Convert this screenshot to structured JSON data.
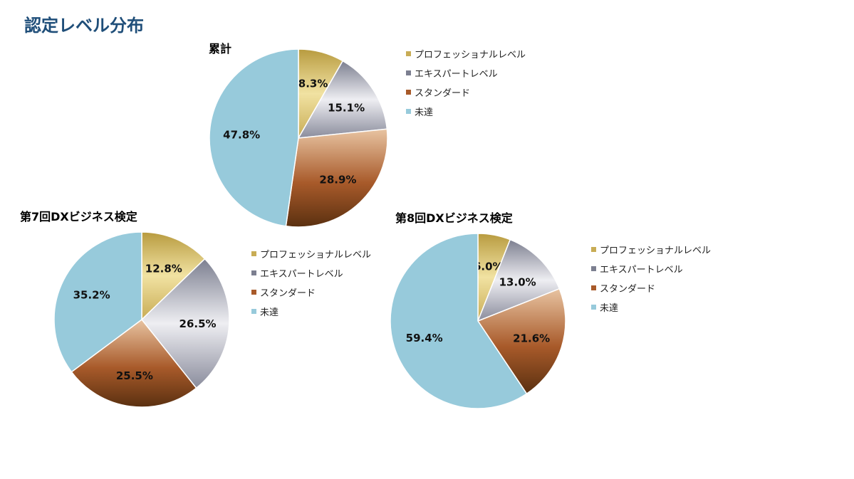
{
  "page": {
    "title": "認定レベル分布"
  },
  "legend_labels": [
    "プロフェッショナルレベル",
    "エキスパートレベル",
    "スタンダード",
    "未達"
  ],
  "colors": {
    "professional": [
      "#b89b3f",
      "#f1e2a2",
      "#c8ac55"
    ],
    "expert": [
      "#7c7f90",
      "#eeeef2",
      "#8a8c9c"
    ],
    "standard": [
      "#e8c4a2",
      "#a85a2a",
      "#5a3010"
    ],
    "unachieved": "#97cadb",
    "title_color": "#1f4e79"
  },
  "chart_data": [
    {
      "type": "pie",
      "title": "累計",
      "labels": [
        "プロフェッショナルレベル",
        "エキスパートレベル",
        "スタンダード",
        "未達"
      ],
      "values": [
        8.3,
        15.1,
        28.9,
        47.8
      ],
      "value_labels": [
        "8.3%",
        "15.1%",
        "28.9%",
        "47.8%"
      ],
      "legend": "right"
    },
    {
      "type": "pie",
      "title": "第7回DXビジネス検定",
      "labels": [
        "プロフェッショナルレベル",
        "エキスパートレベル",
        "スタンダード",
        "未達"
      ],
      "values": [
        12.8,
        26.5,
        25.5,
        35.2
      ],
      "value_labels": [
        "12.8%",
        "26.5%",
        "25.5%",
        "35.2%"
      ],
      "legend": "right"
    },
    {
      "type": "pie",
      "title": "第8回DXビジネス検定",
      "labels": [
        "プロフェッショナルレベル",
        "エキスパートレベル",
        "スタンダード",
        "未達"
      ],
      "values": [
        6.0,
        13.0,
        21.6,
        59.4
      ],
      "value_labels": [
        "6.0%",
        "13.0%",
        "21.6%",
        "59.4%"
      ],
      "legend": "right"
    }
  ]
}
